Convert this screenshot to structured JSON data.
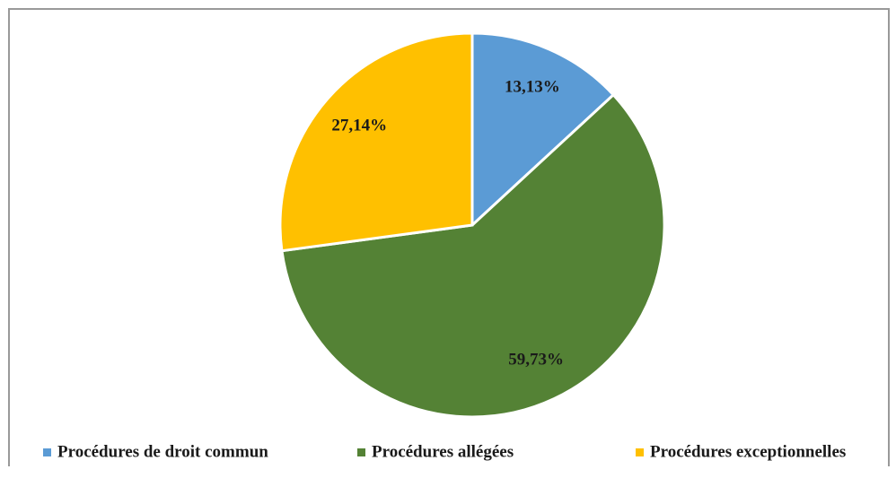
{
  "chart_data": {
    "type": "pie",
    "categories": [
      "Procédures de droit commun",
      "Procédures allégées",
      "Procédures exceptionnelles"
    ],
    "values": [
      13.13,
      59.73,
      27.14
    ],
    "value_labels": [
      "13,13%",
      "59,73%",
      "27,14%"
    ],
    "colors": [
      "#5b9bd5",
      "#548235",
      "#ffc000"
    ]
  }
}
